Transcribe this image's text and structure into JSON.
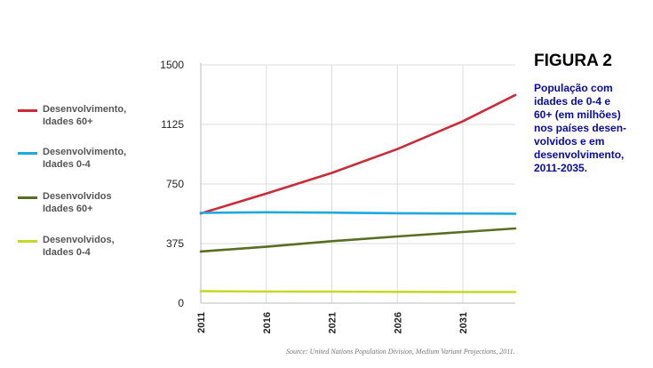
{
  "chart_data": {
    "type": "line",
    "x": [
      2011,
      2016,
      2021,
      2026,
      2031,
      2035
    ],
    "xticks": [
      "2011",
      "2016",
      "2021",
      "2026",
      "2031"
    ],
    "yticks": [
      "0",
      "375",
      "750",
      "1125",
      "1500"
    ],
    "ylim": [
      0,
      1500
    ],
    "xlim": [
      2011,
      2035
    ],
    "grid": true,
    "legend_position": "left",
    "series": [
      {
        "name_l1": "Desenvolvimento,",
        "name_l2": "Idades 60+",
        "color": "#cc2a36",
        "values": [
          565,
          690,
          820,
          970,
          1145,
          1310
        ]
      },
      {
        "name_l1": "Desenvolvimento,",
        "name_l2": "Idades 0-4",
        "color": "#1fa8e0",
        "values": [
          568,
          572,
          570,
          566,
          564,
          563
        ]
      },
      {
        "name_l1": "Desenvolvidos",
        "name_l2": "Idades 60+",
        "color": "#5a6e22",
        "values": [
          325,
          355,
          390,
          420,
          448,
          470
        ]
      },
      {
        "name_l1": "Desenvolvidos,",
        "name_l2": "Idades 0-4",
        "color": "#c6d82a",
        "values": [
          75,
          73,
          72,
          71,
          70,
          70
        ]
      }
    ],
    "source": "Source: United Nations Population Division, Medium Variant Projections, 2011."
  },
  "figure": {
    "title": "FIGURA 2",
    "caption_lines": [
      "População com",
      "idades de 0-4 e",
      "60+ (em milhões)",
      "nos países desen-",
      "volvidos e em",
      "desenvolvimento,",
      "2011-2035."
    ]
  }
}
